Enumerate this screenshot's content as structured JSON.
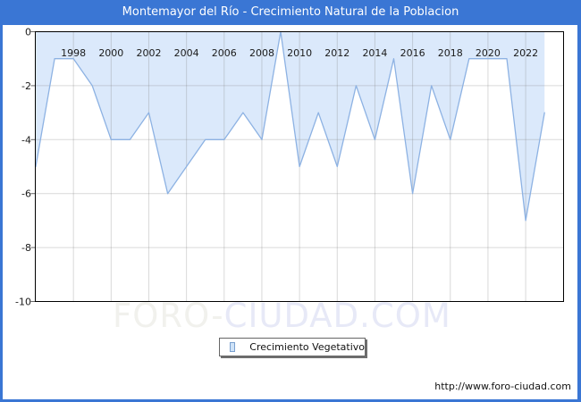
{
  "title": "Montemayor del Río - Crecimiento Natural de la Poblacion",
  "legend": {
    "label": "Crecimiento Vegetativo"
  },
  "watermark": {
    "part1": "FORO-",
    "part2": "CIUDAD.COM"
  },
  "footer": {
    "url": "http://www.foro-ciudad.com"
  },
  "colors": {
    "frame": "#3a76d4",
    "title_text": "#ffffff",
    "line": "#8db2e3",
    "fill": "#dbe9fb",
    "grid": "#808080",
    "plot_border": "#000000",
    "tick_label": "#1a1a1a"
  },
  "chart_data": {
    "type": "area",
    "title": "Montemayor del Río - Crecimiento Natural de la Poblacion",
    "series_name": "Crecimiento Vegetativo",
    "x": [
      1996,
      1997,
      1998,
      1999,
      2000,
      2001,
      2002,
      2003,
      2004,
      2005,
      2006,
      2007,
      2008,
      2009,
      2010,
      2011,
      2012,
      2013,
      2014,
      2015,
      2016,
      2017,
      2018,
      2019,
      2020,
      2021,
      2022,
      2023
    ],
    "values": [
      -5,
      -1,
      -1,
      -2,
      -4,
      -4,
      -3,
      -6,
      -5,
      -4,
      -4,
      -3,
      -4,
      0,
      -5,
      -3,
      -5,
      -2,
      -4,
      -1,
      -6,
      -2,
      -4,
      -1,
      -1,
      -1,
      -7,
      -3
    ],
    "xlabel": "",
    "ylabel": "",
    "ylim": [
      -10,
      0
    ],
    "yticks": [
      0,
      -2,
      -4,
      -6,
      -8,
      -10
    ],
    "xticks": [
      1998,
      2000,
      2002,
      2004,
      2006,
      2008,
      2010,
      2012,
      2014,
      2016,
      2018,
      2020,
      2022
    ],
    "grid": true,
    "fill_to": 0,
    "legend_position": "bottom-center"
  }
}
